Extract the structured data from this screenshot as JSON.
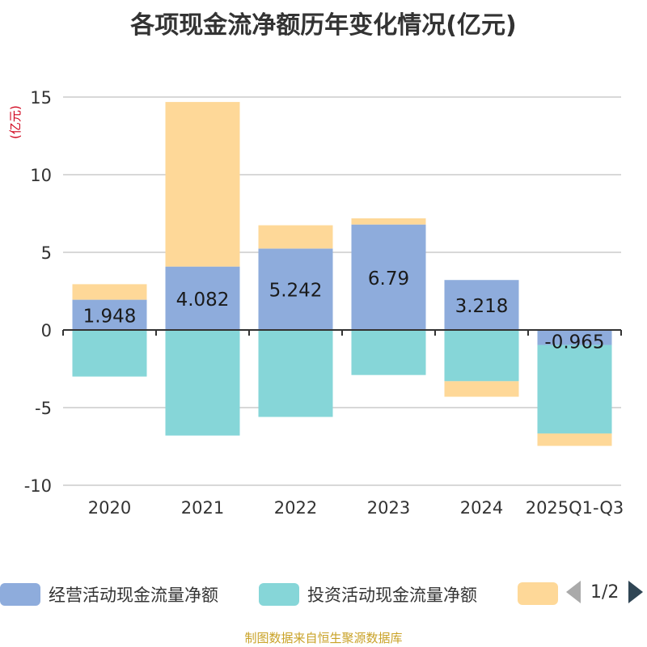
{
  "chart_data": {
    "type": "bar",
    "stacked": true,
    "title": "各项现金流净额历年变化情况(亿元)",
    "ylabel": "(亿元)",
    "ylim": [
      -10,
      15
    ],
    "yticks": [
      15,
      10,
      5,
      0,
      -5,
      -10
    ],
    "grid": true,
    "categories": [
      "2020",
      "2021",
      "2022",
      "2023",
      "2024",
      "2025Q1-Q3"
    ],
    "series": [
      {
        "name": "经营活动现金流量净额",
        "color": "#8eacdc",
        "values": [
          1.948,
          4.082,
          5.242,
          6.79,
          3.218,
          -0.965
        ],
        "labels": [
          "1.948",
          "4.082",
          "5.242",
          "6.79",
          "3.218",
          "-0.965"
        ]
      },
      {
        "name": "投资活动现金流量净额",
        "color": "#86d6d8",
        "values": [
          -3.0,
          -6.8,
          -5.6,
          -2.9,
          -3.3,
          -5.7
        ]
      },
      {
        "name": "",
        "color": "#fed898",
        "values": [
          1.0,
          10.6,
          1.5,
          0.4,
          -1.0,
          -0.8
        ]
      }
    ],
    "legend": {
      "position": "bottom",
      "page": "1/2"
    }
  },
  "footer": {
    "source": "制图数据来自恒生聚源数据库"
  }
}
